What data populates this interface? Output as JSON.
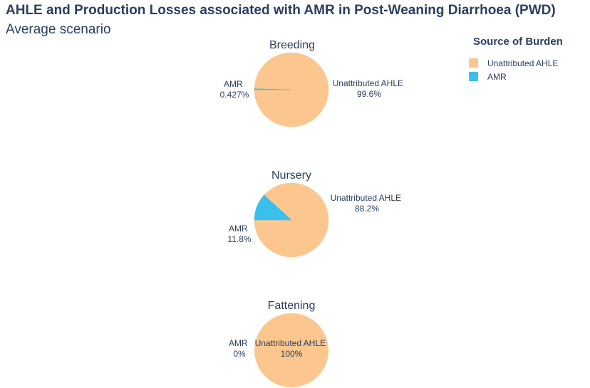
{
  "title": "AHLE and Production Losses associated with AMR in Post-Weaning Diarrhoea (PWD)",
  "subtitle": "Average scenario",
  "legend": {
    "title": "Source of Burden",
    "items": [
      {
        "label": "Unattributed AHLE",
        "color": "#fbc78f"
      },
      {
        "label": "AMR",
        "color": "#3bbfee"
      }
    ]
  },
  "chart_data": [
    {
      "type": "pie",
      "title": "Breeding",
      "slices": [
        {
          "label": "Unattributed AHLE",
          "value": 99.573,
          "text": "99.6%",
          "color": "#fbc78f"
        },
        {
          "label": "AMR",
          "value": 0.427,
          "text": "0.427%",
          "color": "#3bbfee"
        }
      ]
    },
    {
      "type": "pie",
      "title": "Nursery",
      "slices": [
        {
          "label": "Unattributed AHLE",
          "value": 88.2,
          "text": "88.2%",
          "color": "#fbc78f"
        },
        {
          "label": "AMR",
          "value": 11.8,
          "text": "11.8%",
          "color": "#3bbfee"
        }
      ]
    },
    {
      "type": "pie",
      "title": "Fattening",
      "slices": [
        {
          "label": "Unattributed AHLE",
          "value": 100,
          "text": "100%",
          "color": "#fbc78f"
        },
        {
          "label": "AMR",
          "value": 0,
          "text": "0%",
          "color": "#3bbfee"
        }
      ]
    }
  ]
}
